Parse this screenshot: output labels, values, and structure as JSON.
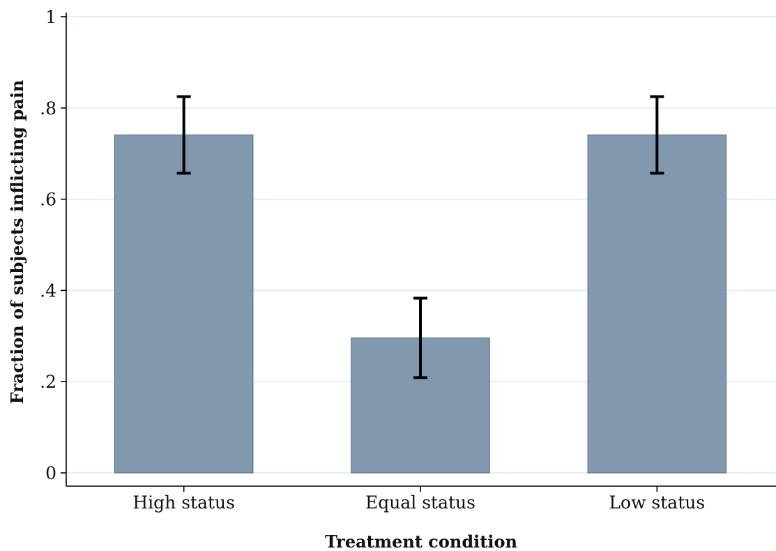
{
  "chart_data": {
    "type": "bar",
    "title": "",
    "xlabel": "Treatment condition",
    "ylabel": "Fraction of subjects inflicting pain",
    "categories": [
      "High status",
      "Equal status",
      "Low status"
    ],
    "values": [
      0.741,
      0.296,
      0.741
    ],
    "error_low": [
      0.657,
      0.209,
      0.657
    ],
    "error_high": [
      0.825,
      0.383,
      0.825
    ],
    "ylim": [
      0,
      1
    ],
    "yticks": [
      0,
      0.2,
      0.4,
      0.6,
      0.8,
      1
    ],
    "ytick_labels": [
      "0",
      ".2",
      ".4",
      ".6",
      ".8",
      "1"
    ],
    "grid": true,
    "bar_color": "#8198ae",
    "error_color": "#000000",
    "grid_color": "#e6eef2"
  }
}
